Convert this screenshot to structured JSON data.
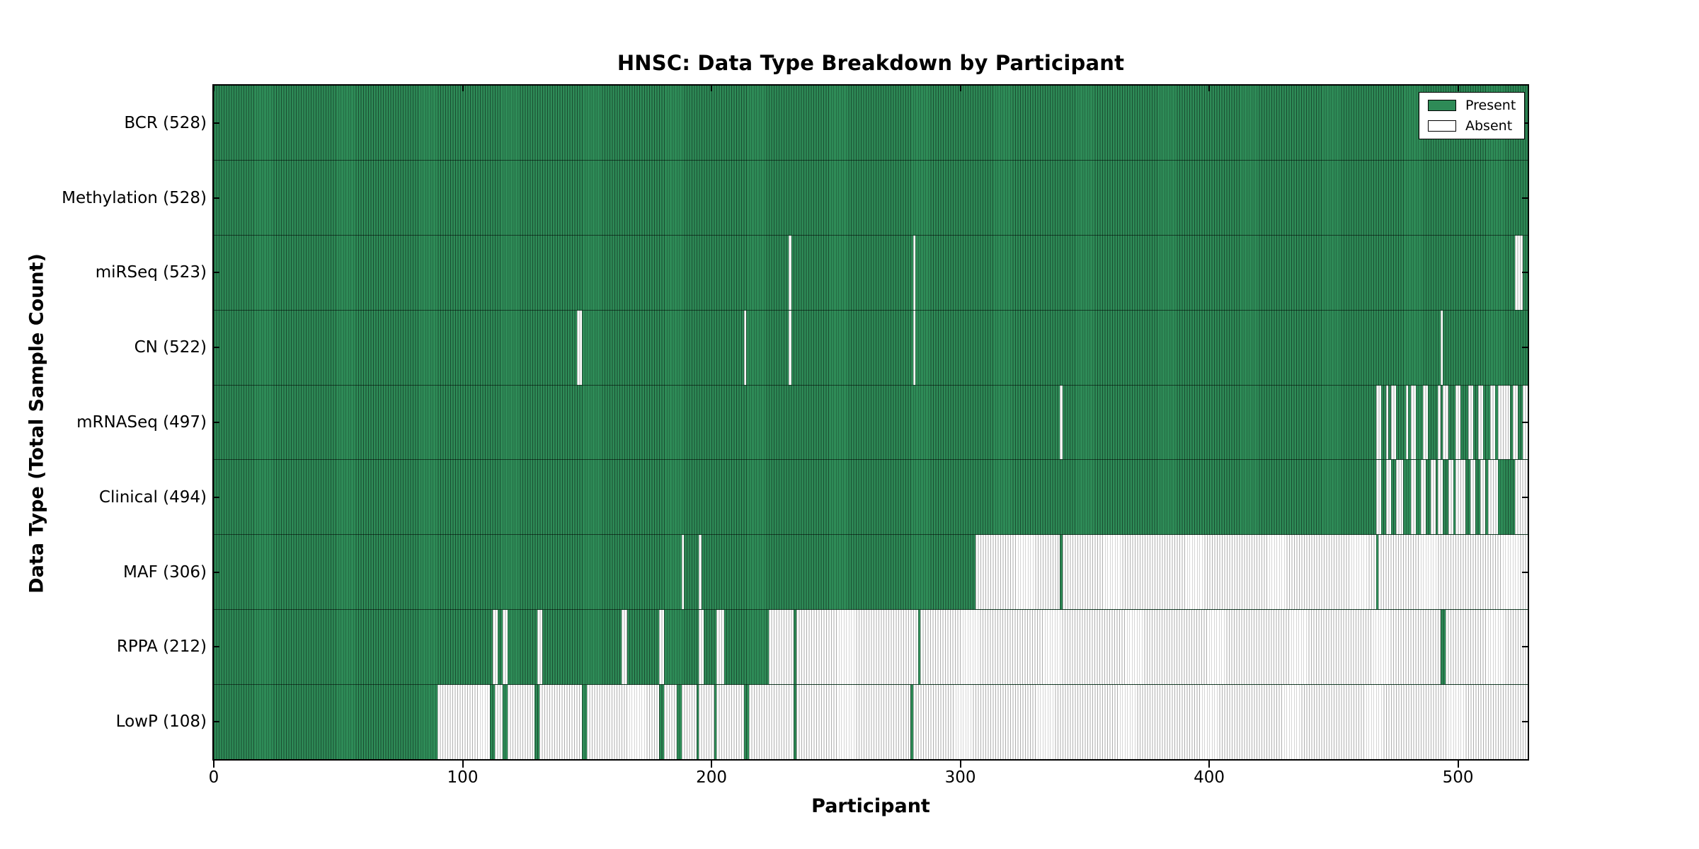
{
  "figure": {
    "title": "HNSC: Data Type Breakdown by Participant",
    "x_axis_title": "Participant",
    "y_axis_title": "Data Type (Total Sample Count)"
  },
  "legend": {
    "present_label": "Present",
    "absent_label": "Absent"
  },
  "colors": {
    "present": "#2e8b57",
    "present_edge": "rgba(0,0,0,0.45)",
    "absent": "#ffffff",
    "absent_edge": "#aeaeae",
    "row_divider": "rgba(0,0,0,0.55)",
    "axis": "#000000"
  },
  "chart_data": {
    "type": "heatmap",
    "title": "HNSC: Data Type Breakdown by Participant",
    "xlabel": "Participant",
    "ylabel": "Data Type (Total Sample Count)",
    "legend_entries": [
      "Present",
      "Absent"
    ],
    "legend_position": "upper right",
    "n_participants": 528,
    "xlim": [
      0,
      528
    ],
    "x_ticks": [
      0,
      100,
      200,
      300,
      400,
      500
    ],
    "value_encoding": {
      "present": 1,
      "absent": 0
    },
    "rows": [
      {
        "name": "BCR",
        "total": 528,
        "absent_ranges": []
      },
      {
        "name": "Methylation",
        "total": 528,
        "absent_ranges": []
      },
      {
        "name": "miRSeq",
        "total": 523,
        "absent_ranges": [
          [
            231,
            231
          ],
          [
            281,
            281
          ],
          [
            523,
            525
          ]
        ]
      },
      {
        "name": "CN",
        "total": 522,
        "absent_ranges": [
          [
            146,
            147
          ],
          [
            213,
            213
          ],
          [
            231,
            231
          ],
          [
            281,
            281
          ],
          [
            493,
            493
          ]
        ]
      },
      {
        "name": "mRNASeq",
        "total": 497,
        "absent_ranges": [
          [
            340,
            340
          ],
          [
            467,
            468
          ],
          [
            471,
            471
          ],
          [
            473,
            474
          ],
          [
            479,
            479
          ],
          [
            481,
            482
          ],
          [
            486,
            487
          ],
          [
            492,
            492
          ],
          [
            494,
            495
          ],
          [
            499,
            500
          ],
          [
            504,
            505
          ],
          [
            508,
            509
          ],
          [
            513,
            514
          ],
          [
            516,
            520
          ],
          [
            522,
            523
          ],
          [
            526,
            527
          ]
        ]
      },
      {
        "name": "Clinical",
        "total": 494,
        "absent_ranges": [
          [
            467,
            468
          ],
          [
            471,
            472
          ],
          [
            475,
            477
          ],
          [
            481,
            482
          ],
          [
            485,
            486
          ],
          [
            489,
            490
          ],
          [
            492,
            493
          ],
          [
            496,
            497
          ],
          [
            499,
            502
          ],
          [
            505,
            506
          ],
          [
            509,
            510
          ],
          [
            512,
            515
          ],
          [
            523,
            527
          ]
        ]
      },
      {
        "name": "MAF",
        "total": 306,
        "absent_ranges": [
          [
            188,
            188
          ],
          [
            195,
            195
          ],
          [
            306,
            339
          ],
          [
            341,
            466
          ],
          [
            468,
            527
          ]
        ]
      },
      {
        "name": "RPPA",
        "total": 212,
        "absent_ranges": [
          [
            112,
            113
          ],
          [
            116,
            117
          ],
          [
            130,
            131
          ],
          [
            164,
            165
          ],
          [
            179,
            180
          ],
          [
            195,
            196
          ],
          [
            202,
            204
          ],
          [
            223,
            232
          ],
          [
            234,
            282
          ],
          [
            284,
            492
          ],
          [
            495,
            527
          ]
        ]
      },
      {
        "name": "LowP",
        "total": 108,
        "absent_ranges": [
          [
            90,
            110
          ],
          [
            113,
            115
          ],
          [
            118,
            128
          ],
          [
            131,
            147
          ],
          [
            150,
            178
          ],
          [
            181,
            185
          ],
          [
            188,
            193
          ],
          [
            195,
            200
          ],
          [
            202,
            212
          ],
          [
            215,
            232
          ],
          [
            234,
            279
          ],
          [
            281,
            527
          ]
        ]
      }
    ]
  }
}
